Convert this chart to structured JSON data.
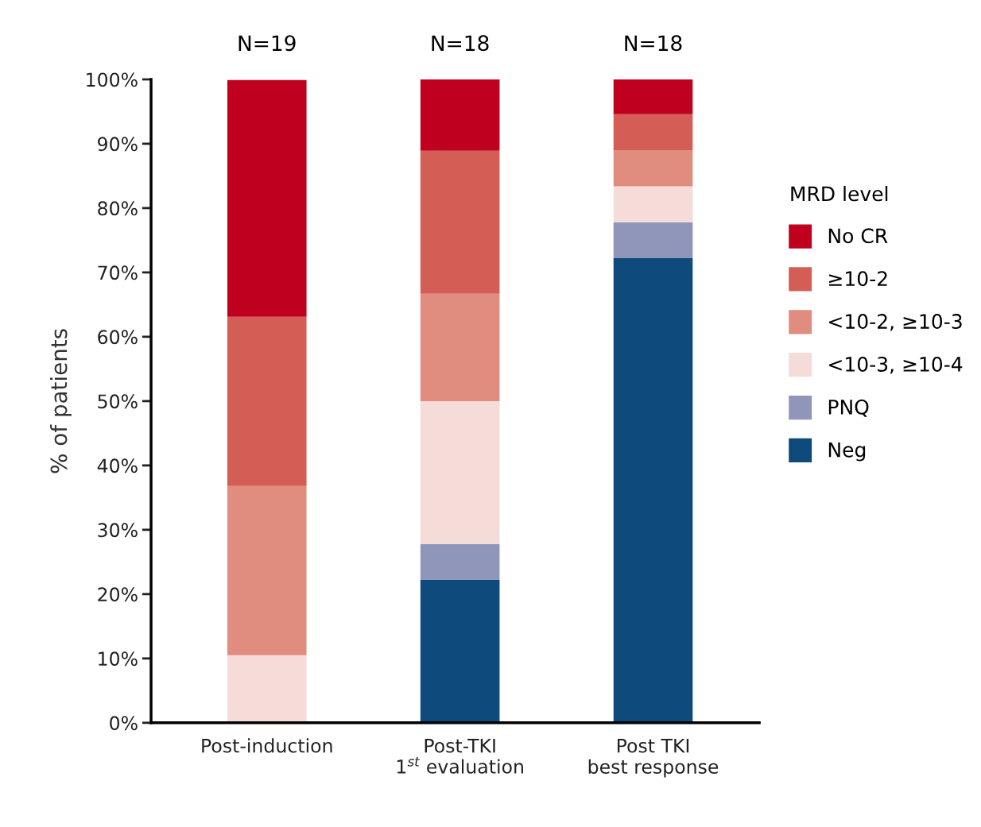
{
  "chart_data": {
    "type": "bar",
    "stacked": true,
    "ylabel": "% of patients",
    "legend_title": "MRD level",
    "legend": "right",
    "grid": false,
    "categories": [
      "Post-induction",
      "Post-TKI\n1$^{st}$ evaluation",
      "Post TKI\nbest response"
    ],
    "series": [
      {
        "name": "Neg",
        "color": "#0e4a7c",
        "values": [
          0,
          22.2,
          72.2
        ]
      },
      {
        "name": "PNQ",
        "color": "#8f96b9",
        "values": [
          0,
          5.6,
          5.6
        ]
      },
      {
        "name": "<10-3, ≥10-4",
        "color": "#f5dcd8",
        "values": [
          10.5,
          22.2,
          5.6
        ]
      },
      {
        "name": "<10-2, ≥10-3",
        "color": "#e08c7e",
        "values": [
          26.3,
          16.7,
          5.6
        ]
      },
      {
        "name": "≥10-2",
        "color": "#d45d55",
        "values": [
          26.3,
          22.2,
          5.6
        ]
      },
      {
        "name": "No CR",
        "color": "#c0001f",
        "values": [
          36.8,
          11.1,
          5.6
        ]
      }
    ],
    "ylim": [
      0,
      100
    ],
    "yticks": [
      {
        "value": 0,
        "label": "0%"
      },
      {
        "value": 10,
        "label": "10%"
      },
      {
        "value": 20,
        "label": "20%"
      },
      {
        "value": 30,
        "label": "30%"
      },
      {
        "value": 40,
        "label": "40%"
      },
      {
        "value": 50,
        "label": "50%"
      },
      {
        "value": 60,
        "label": "60%"
      },
      {
        "value": 70,
        "label": "70%"
      },
      {
        "value": 80,
        "label": "80%"
      },
      {
        "value": 90,
        "label": "90%"
      },
      {
        "value": 100,
        "label": "100%"
      }
    ],
    "annotations": [
      {
        "text": "N=19",
        "x": "Post-induction",
        "y": 100
      },
      {
        "text": "N=18",
        "x": "Post-TKI\n1$^{st}$ evaluation",
        "y": 100
      },
      {
        "text": "N=18",
        "x": "Post TKI\nbest response",
        "y": 100
      }
    ]
  }
}
